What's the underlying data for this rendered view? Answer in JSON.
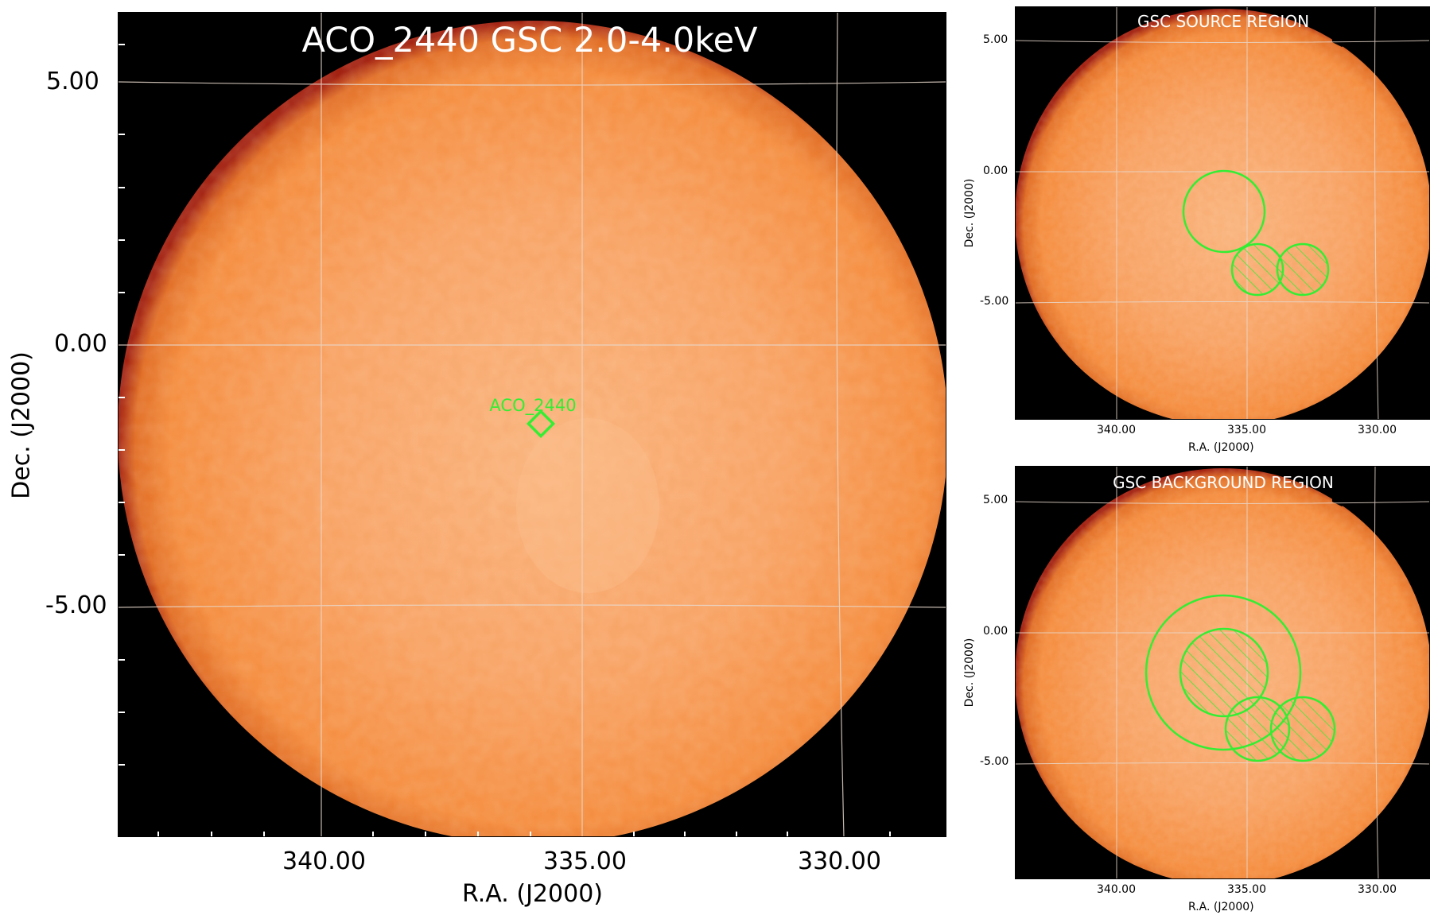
{
  "main_panel": {
    "title": "ACO_2440 GSC 2.0-4.0keV",
    "marker_label": "ACO_2440",
    "xlabel": "R.A. (J2000)",
    "ylabel": "Dec. (J2000)",
    "x_ticks": [
      "340.00",
      "335.00",
      "330.00"
    ],
    "y_ticks": [
      "5.00",
      "0.00",
      "-5.00"
    ]
  },
  "source_panel": {
    "title": "GSC SOURCE REGION",
    "xlabel": "R.A. (J2000)",
    "ylabel": "Dec. (J2000)",
    "x_ticks": [
      "340.00",
      "335.00",
      "330.00"
    ],
    "y_ticks": [
      "5.00",
      "0.00",
      "-5.00"
    ]
  },
  "background_panel": {
    "title": "GSC BACKGROUND REGION",
    "xlabel": "R.A. (J2000)",
    "ylabel": "Dec. (J2000)",
    "x_ticks": [
      "340.00",
      "335.00",
      "330.00"
    ],
    "y_ticks": [
      "5.00",
      "0.00",
      "-5.00"
    ]
  },
  "colors": {
    "disk_center": "#f9b27a",
    "disk_mid": "#f7944a",
    "disk_edge": "#f07c2a",
    "rim": "#b02010",
    "region": "#33ee33",
    "grid": "#e8d8cc"
  }
}
